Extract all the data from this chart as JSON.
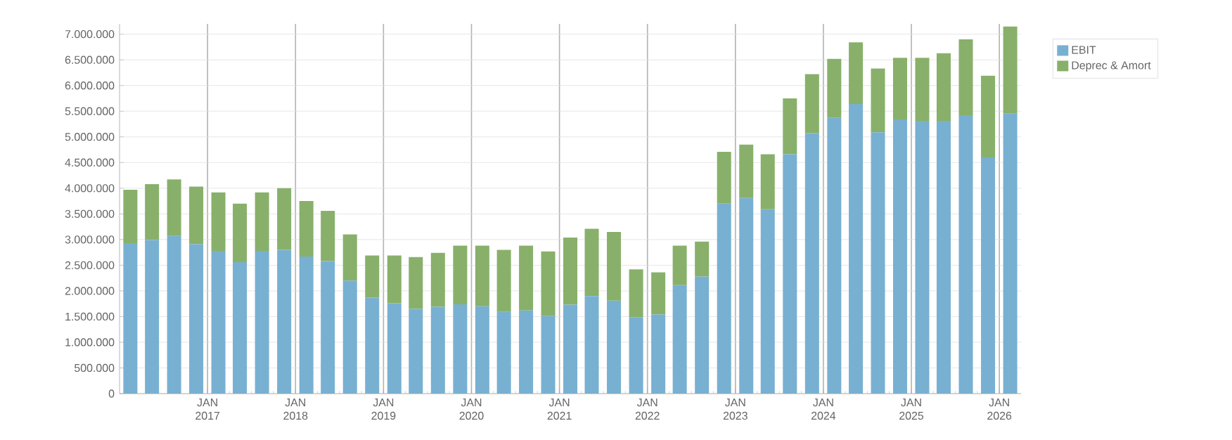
{
  "chart_data": {
    "type": "bar",
    "stacked": true,
    "x": [
      "2016-02-15",
      "2016-05-15",
      "2016-08-15",
      "2016-11-15",
      "2017-02-15",
      "2017-05-15",
      "2017-08-15",
      "2017-11-15",
      "2018-02-15",
      "2018-05-15",
      "2018-08-15",
      "2018-11-15",
      "2019-02-15",
      "2019-05-15",
      "2019-08-15",
      "2019-11-15",
      "2020-02-15",
      "2020-05-15",
      "2020-08-15",
      "2020-11-15",
      "2021-02-15",
      "2021-05-15",
      "2021-08-15",
      "2021-11-15",
      "2022-02-15",
      "2022-05-15",
      "2022-08-15",
      "2022-11-15",
      "2023-02-15",
      "2023-05-15",
      "2023-08-15",
      "2023-11-15",
      "2024-02-15",
      "2024-05-15",
      "2024-08-15",
      "2024-11-15",
      "2025-02-15",
      "2025-05-15",
      "2025-08-15",
      "2025-11-15",
      "2026-02-15"
    ],
    "series": [
      {
        "name": "EBIT",
        "color": "#78b0d2",
        "values": [
          2930000,
          2990000,
          3070000,
          2910000,
          2780000,
          2560000,
          2780000,
          2800000,
          2670000,
          2580000,
          2200000,
          1870000,
          1760000,
          1650000,
          1690000,
          1740000,
          1700000,
          1590000,
          1620000,
          1510000,
          1730000,
          1900000,
          1810000,
          1490000,
          1540000,
          2110000,
          2280000,
          3700000,
          3810000,
          3590000,
          4660000,
          5070000,
          5370000,
          5640000,
          5090000,
          5340000,
          5310000,
          5310000,
          5420000,
          4600000,
          5450000
        ]
      },
      {
        "name": "Deprec & Amort",
        "color": "#88b06a",
        "values": [
          1040000,
          1090000,
          1100000,
          1120000,
          1140000,
          1140000,
          1140000,
          1200000,
          1080000,
          980000,
          900000,
          820000,
          930000,
          1010000,
          1050000,
          1140000,
          1180000,
          1210000,
          1260000,
          1260000,
          1310000,
          1310000,
          1340000,
          930000,
          820000,
          770000,
          680000,
          1010000,
          1040000,
          1070000,
          1090000,
          1150000,
          1150000,
          1200000,
          1240000,
          1200000,
          1230000,
          1320000,
          1480000,
          1590000,
          1700000
        ]
      }
    ],
    "xlim": [
      "2016-01-01",
      "2026-04-01"
    ],
    "xticks": [
      {
        "value": "2017-01-01",
        "label": "JAN 2017"
      },
      {
        "value": "2018-01-01",
        "label": "JAN 2018"
      },
      {
        "value": "2019-01-01",
        "label": "JAN 2019"
      },
      {
        "value": "2020-01-01",
        "label": "JAN 2020"
      },
      {
        "value": "2021-01-01",
        "label": "JAN 2021"
      },
      {
        "value": "2022-01-01",
        "label": "JAN 2022"
      },
      {
        "value": "2023-01-01",
        "label": "JAN 2023"
      },
      {
        "value": "2024-01-01",
        "label": "JAN 2024"
      },
      {
        "value": "2025-01-01",
        "label": "JAN 2025"
      },
      {
        "value": "2026-01-01",
        "label": "JAN 2026"
      }
    ],
    "ylim": [
      0,
      7200000
    ],
    "yticks": [
      {
        "value": 0,
        "label": "0"
      },
      {
        "value": 500000,
        "label": "500.000"
      },
      {
        "value": 1000000,
        "label": "1.000.000"
      },
      {
        "value": 1500000,
        "label": "1.500.000"
      },
      {
        "value": 2000000,
        "label": "2.000.000"
      },
      {
        "value": 2500000,
        "label": "2.500.000"
      },
      {
        "value": 3000000,
        "label": "3.000.000"
      },
      {
        "value": 3500000,
        "label": "3.500.000"
      },
      {
        "value": 4000000,
        "label": "4.000.000"
      },
      {
        "value": 4500000,
        "label": "4.500.000"
      },
      {
        "value": 5000000,
        "label": "5.000.000"
      },
      {
        "value": 5500000,
        "label": "5.500.000"
      },
      {
        "value": 6000000,
        "label": "6.000.000"
      },
      {
        "value": 6500000,
        "label": "6.500.000"
      },
      {
        "value": 7000000,
        "label": "7.000.000"
      }
    ],
    "grid": true,
    "legend": "top right"
  }
}
